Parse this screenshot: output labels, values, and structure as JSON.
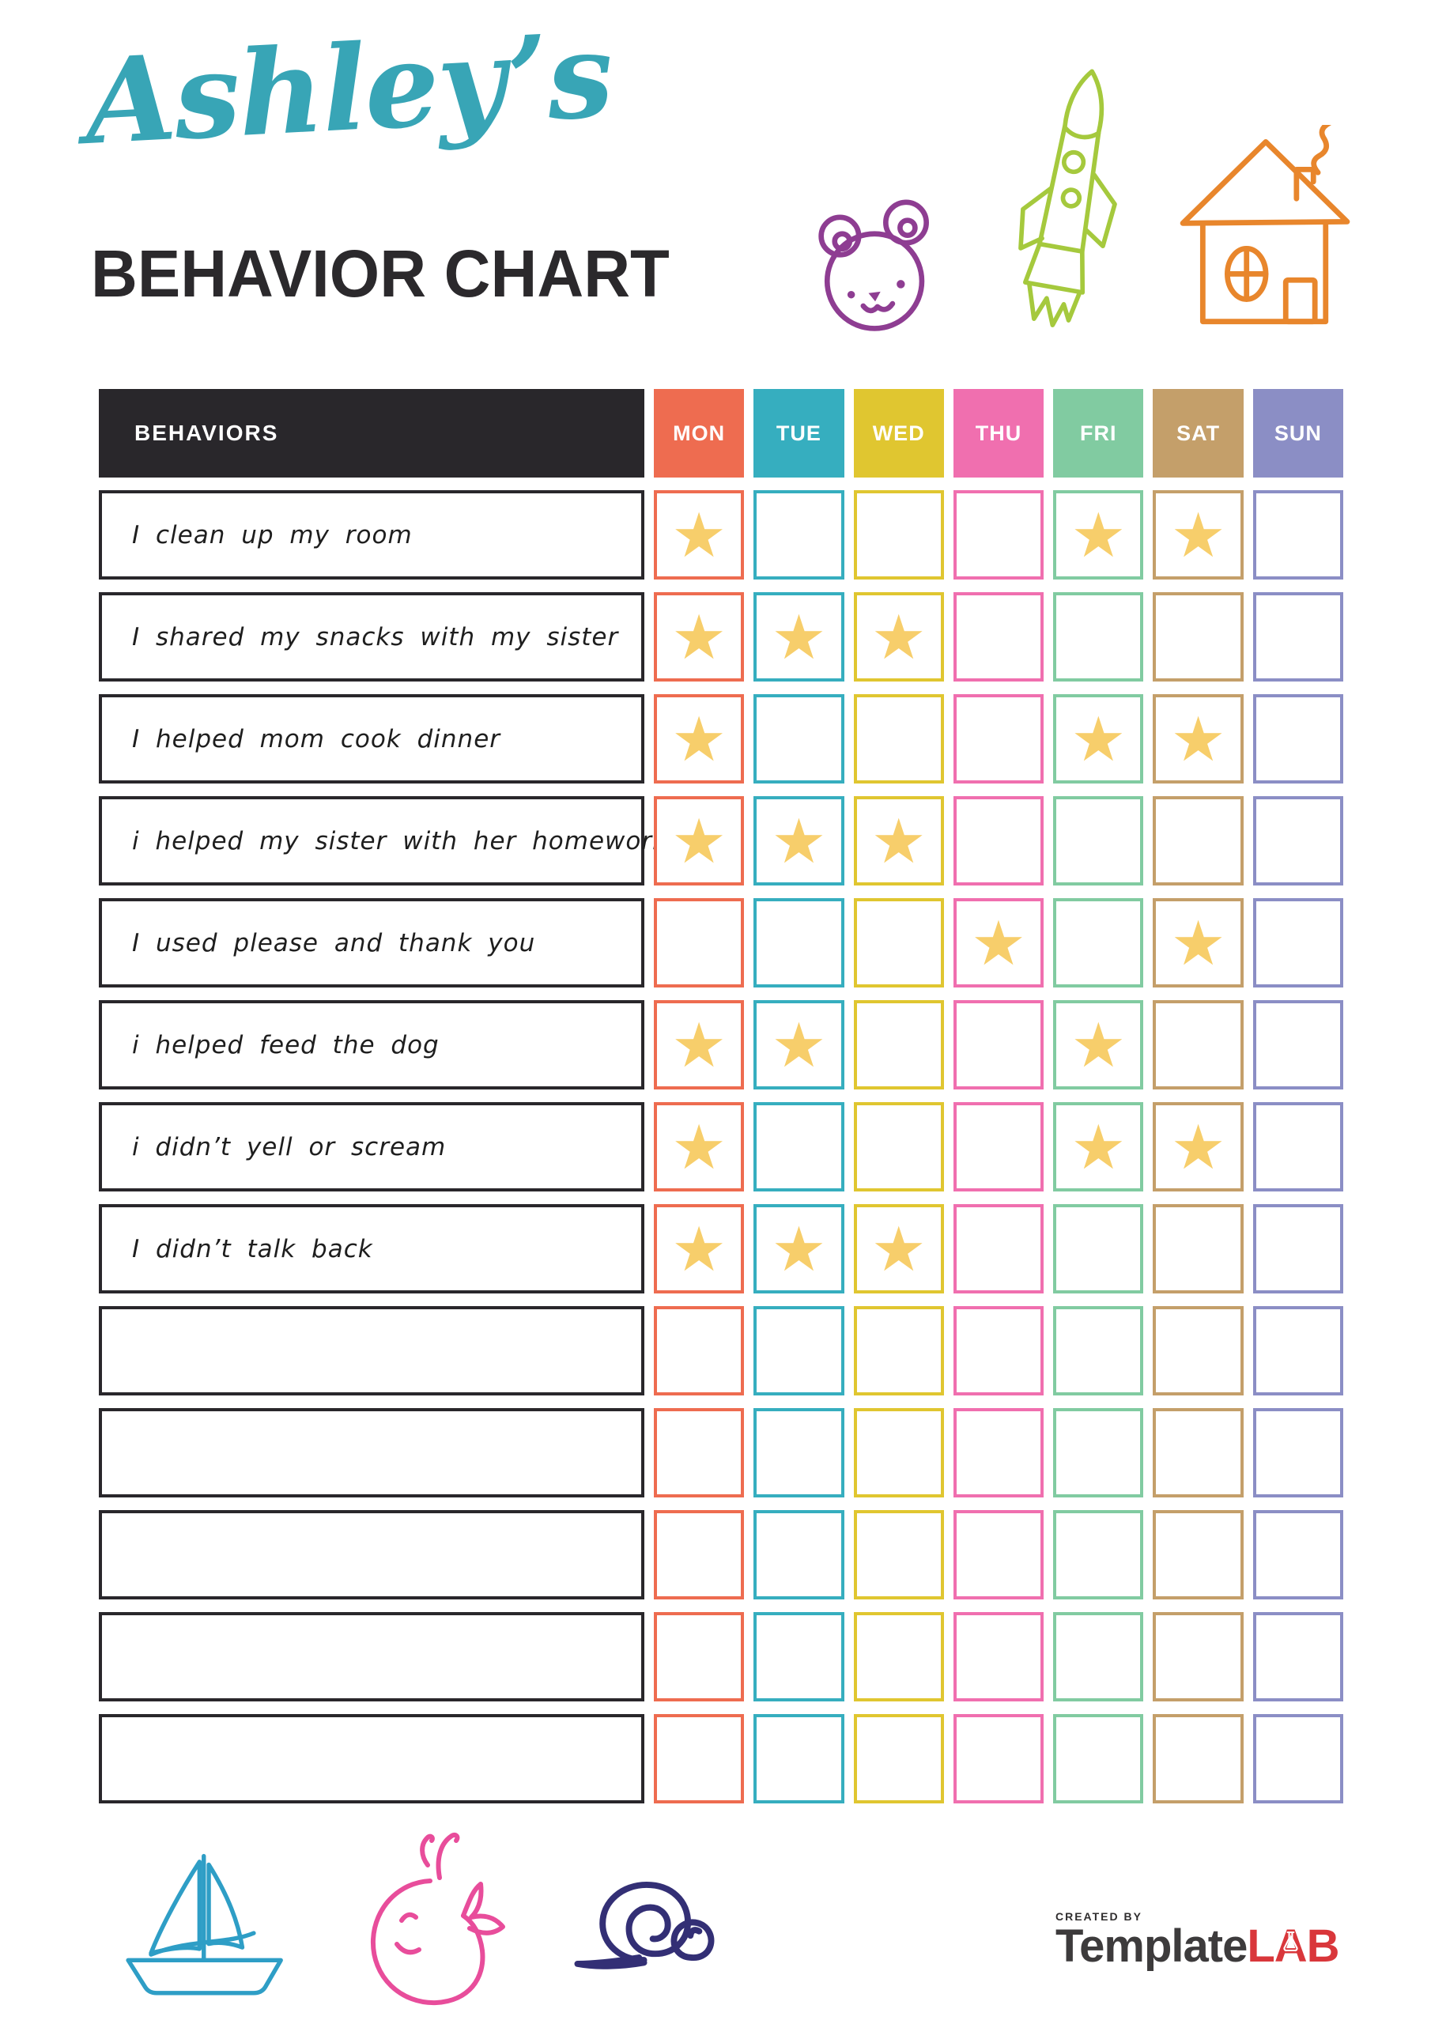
{
  "header": {
    "script_title": "Ashley’s",
    "main_title": "BEHAVIOR CHART"
  },
  "table": {
    "behaviors_label": "BEHAVIORS",
    "star_glyph": "★",
    "days": [
      {
        "label": "MON",
        "color": "#EE6C50"
      },
      {
        "label": "TUE",
        "color": "#36AEBF"
      },
      {
        "label": "WED",
        "color": "#E0C630"
      },
      {
        "label": "THU",
        "color": "#F06FAF"
      },
      {
        "label": "FRI",
        "color": "#81CBA1"
      },
      {
        "label": "SAT",
        "color": "#C49F6A"
      },
      {
        "label": "SUN",
        "color": "#8B8EC5"
      }
    ],
    "rows": [
      {
        "behavior": "I clean up my room",
        "stars": [
          true,
          false,
          false,
          false,
          true,
          true,
          false
        ]
      },
      {
        "behavior": "I shared my snacks with my sister",
        "stars": [
          true,
          true,
          true,
          false,
          false,
          false,
          false
        ]
      },
      {
        "behavior": "I helped mom cook dinner",
        "stars": [
          true,
          false,
          false,
          false,
          true,
          true,
          false
        ]
      },
      {
        "behavior": "i helped my sister with her homework",
        "stars": [
          true,
          true,
          true,
          false,
          false,
          false,
          false
        ]
      },
      {
        "behavior": "I used please and thank you",
        "stars": [
          false,
          false,
          false,
          true,
          false,
          true,
          false
        ]
      },
      {
        "behavior": "i helped feed the dog",
        "stars": [
          true,
          true,
          false,
          false,
          true,
          false,
          false
        ]
      },
      {
        "behavior": "i didn’t yell or scream",
        "stars": [
          true,
          false,
          false,
          false,
          true,
          true,
          false
        ]
      },
      {
        "behavior": "I didn’t talk back",
        "stars": [
          true,
          true,
          true,
          false,
          false,
          false,
          false
        ]
      },
      {
        "behavior": "",
        "stars": [
          false,
          false,
          false,
          false,
          false,
          false,
          false
        ]
      },
      {
        "behavior": "",
        "stars": [
          false,
          false,
          false,
          false,
          false,
          false,
          false
        ]
      },
      {
        "behavior": "",
        "stars": [
          false,
          false,
          false,
          false,
          false,
          false,
          false
        ]
      },
      {
        "behavior": "",
        "stars": [
          false,
          false,
          false,
          false,
          false,
          false,
          false
        ]
      },
      {
        "behavior": "",
        "stars": [
          false,
          false,
          false,
          false,
          false,
          false,
          false
        ]
      }
    ]
  },
  "footer": {
    "created_by": "CREATED BY",
    "brand_name": "Template",
    "brand_suffix": "LAB"
  },
  "colors": {
    "script_title": "#38A5B6",
    "heading": "#2B292C",
    "table_black": "#29272B",
    "star": "#F7CE6B",
    "bear": "#8E3D92",
    "rocket": "#A5C93D",
    "house": "#E8862C",
    "sailboat": "#2E9EC6",
    "whale": "#E84D9B",
    "snail": "#332F75",
    "logo_dark": "#3D3B3C",
    "logo_red": "#D9373B"
  }
}
